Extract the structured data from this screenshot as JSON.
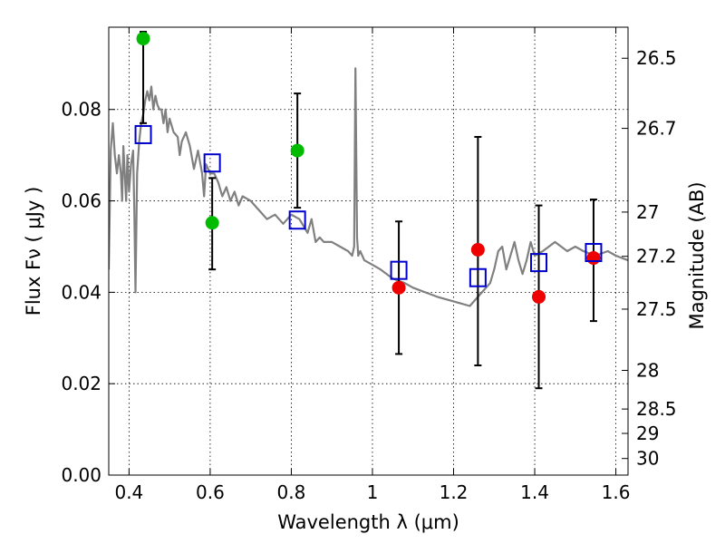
{
  "chart_data": {
    "type": "scatter",
    "xlabel": "Wavelength  λ (μm)",
    "ylabel": "Flux  Fν  ( μJy )",
    "y2label": "Magnitude (AB)",
    "xlim": [
      0.35,
      1.63
    ],
    "ylim": [
      0.0,
      0.098
    ],
    "grid": true,
    "x_ticks": [
      {
        "value": 0.4,
        "label": "0.4"
      },
      {
        "value": 0.6,
        "label": "0.6"
      },
      {
        "value": 0.8,
        "label": "0.8"
      },
      {
        "value": 1.0,
        "label": "1"
      },
      {
        "value": 1.2,
        "label": "1.2"
      },
      {
        "value": 1.4,
        "label": "1.4"
      },
      {
        "value": 1.6,
        "label": "1.6"
      }
    ],
    "y_ticks": [
      {
        "value": 0.0,
        "label": "0.00"
      },
      {
        "value": 0.02,
        "label": "0.02"
      },
      {
        "value": 0.04,
        "label": "0.04"
      },
      {
        "value": 0.06,
        "label": "0.06"
      },
      {
        "value": 0.08,
        "label": "0.08"
      }
    ],
    "magnitude_ticks": [
      {
        "value": 26.5,
        "label": "26.5"
      },
      {
        "value": 26.7,
        "label": "26.7"
      },
      {
        "value": 27.0,
        "label": "27"
      },
      {
        "value": 27.2,
        "label": "27.2"
      },
      {
        "value": 27.5,
        "label": "27.5"
      },
      {
        "value": 28.0,
        "label": "28"
      },
      {
        "value": 28.5,
        "label": "28.5"
      },
      {
        "value": 29.0,
        "label": "29"
      },
      {
        "value": 30.0,
        "label": "30"
      }
    ],
    "series": [
      {
        "kind": "line",
        "color": "#808080",
        "x": [
          0.35,
          0.355,
          0.36,
          0.365,
          0.37,
          0.375,
          0.38,
          0.383,
          0.386,
          0.39,
          0.393,
          0.396,
          0.4,
          0.405,
          0.41,
          0.413,
          0.416,
          0.42,
          0.425,
          0.43,
          0.435,
          0.44,
          0.445,
          0.45,
          0.455,
          0.46,
          0.465,
          0.47,
          0.475,
          0.48,
          0.485,
          0.49,
          0.495,
          0.5,
          0.51,
          0.52,
          0.525,
          0.53,
          0.54,
          0.55,
          0.56,
          0.57,
          0.58,
          0.585,
          0.59,
          0.6,
          0.61,
          0.62,
          0.63,
          0.64,
          0.65,
          0.66,
          0.67,
          0.68,
          0.7,
          0.72,
          0.74,
          0.76,
          0.78,
          0.8,
          0.82,
          0.84,
          0.85,
          0.86,
          0.87,
          0.88,
          0.9,
          0.92,
          0.94,
          0.95,
          0.955,
          0.958,
          0.962,
          0.965,
          0.97,
          0.98,
          1.0,
          1.02,
          1.05,
          1.08,
          1.1,
          1.13,
          1.16,
          1.2,
          1.24,
          1.27,
          1.29,
          1.3,
          1.31,
          1.32,
          1.33,
          1.35,
          1.36,
          1.37,
          1.38,
          1.39,
          1.4,
          1.42,
          1.45,
          1.48,
          1.5,
          1.52,
          1.55,
          1.58,
          1.6,
          1.63
        ],
        "y": [
          0.045,
          0.071,
          0.077,
          0.07,
          0.066,
          0.07,
          0.066,
          0.06,
          0.072,
          0.065,
          0.06,
          0.07,
          0.062,
          0.068,
          0.071,
          0.058,
          0.04,
          0.066,
          0.073,
          0.077,
          0.079,
          0.082,
          0.084,
          0.082,
          0.085,
          0.08,
          0.083,
          0.081,
          0.08,
          0.08,
          0.077,
          0.08,
          0.075,
          0.078,
          0.075,
          0.074,
          0.07,
          0.073,
          0.075,
          0.072,
          0.067,
          0.071,
          0.066,
          0.061,
          0.068,
          0.066,
          0.066,
          0.064,
          0.061,
          0.063,
          0.06,
          0.062,
          0.059,
          0.061,
          0.06,
          0.058,
          0.056,
          0.057,
          0.055,
          0.057,
          0.056,
          0.053,
          0.056,
          0.051,
          0.052,
          0.051,
          0.051,
          0.05,
          0.049,
          0.048,
          0.05,
          0.089,
          0.052,
          0.048,
          0.049,
          0.047,
          0.046,
          0.045,
          0.043,
          0.042,
          0.041,
          0.04,
          0.039,
          0.038,
          0.037,
          0.04,
          0.042,
          0.045,
          0.049,
          0.05,
          0.045,
          0.051,
          0.047,
          0.044,
          0.047,
          0.051,
          0.048,
          0.049,
          0.051,
          0.049,
          0.05,
          0.049,
          0.048,
          0.049,
          0.048,
          0.047
        ]
      },
      {
        "kind": "errorbar",
        "color": "#000000",
        "x": [
          0.435,
          0.605,
          0.815,
          1.065,
          1.26,
          1.41,
          1.545
        ],
        "y": [
          0.087,
          0.055,
          0.071,
          0.041,
          0.049,
          0.039,
          0.047
        ],
        "yerr": [
          0.01,
          0.01,
          0.0125,
          0.0145,
          0.025,
          0.02,
          0.0133
        ]
      },
      {
        "kind": "scatter",
        "marker": "circle",
        "color": "#00bb00",
        "x": [
          0.435,
          0.605,
          0.815
        ],
        "y": [
          0.0955,
          0.0552,
          0.071
        ]
      },
      {
        "kind": "scatter",
        "marker": "circle",
        "color": "#ee0000",
        "x": [
          1.065,
          1.26,
          1.41,
          1.545
        ],
        "y": [
          0.041,
          0.0493,
          0.039,
          0.0475
        ]
      },
      {
        "kind": "scatter",
        "marker": "open-square",
        "color": "#0000cc",
        "x": [
          0.435,
          0.605,
          0.815,
          1.065,
          1.26,
          1.41,
          1.545
        ],
        "y": [
          0.0745,
          0.0683,
          0.0558,
          0.0448,
          0.0432,
          0.0465,
          0.0487
        ]
      }
    ]
  }
}
